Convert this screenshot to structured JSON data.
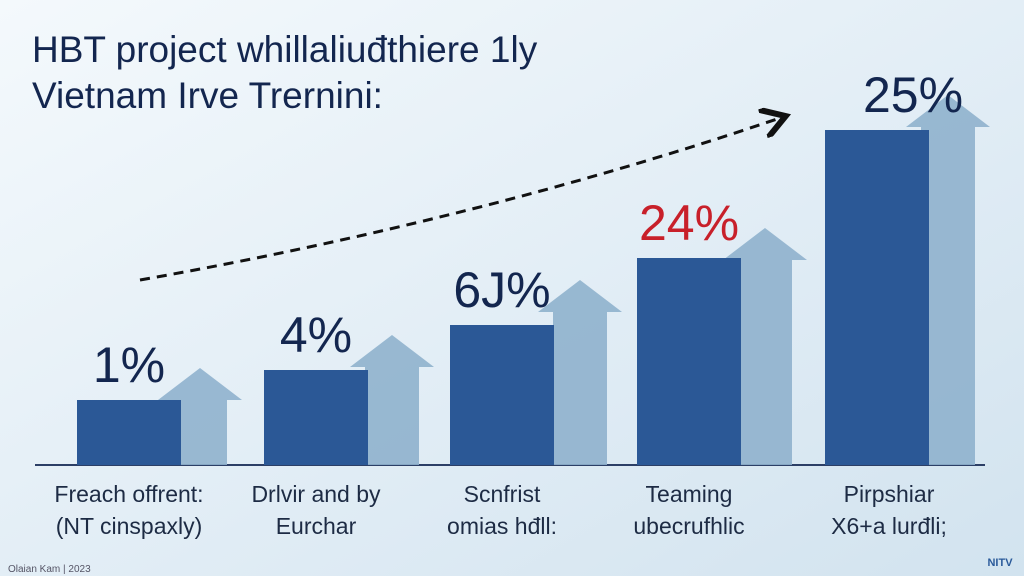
{
  "header": {
    "title_lines": [
      "HBT project whillaliuđthiere  1ly",
      "Vietnam  Irve  Trernini:"
    ]
  },
  "bars": [
    {
      "value_label": "1%",
      "label_color": "#13264f",
      "category_lines": [
        "Freach offrent:",
        "(NT cinspaxly)"
      ]
    },
    {
      "value_label": "4%",
      "label_color": "#13264f",
      "category_lines": [
        "Drlvir and by",
        "Eurchar"
      ]
    },
    {
      "value_label": "6J%",
      "label_color": "#13264f",
      "category_lines": [
        "Scnfrist",
        "omias hđll:"
      ]
    },
    {
      "value_label": "24%",
      "label_color": "#c8202a",
      "category_lines": [
        "Teaming",
        "ubecrufhlic"
      ]
    },
    {
      "value_label": "25%",
      "label_color": "#13264f",
      "category_lines": [
        "Pirpshiar",
        "X6+a lurđli;"
      ]
    }
  ],
  "footer": {
    "caption": "Olaian Kam | 2023",
    "logo": "NITV"
  }
}
